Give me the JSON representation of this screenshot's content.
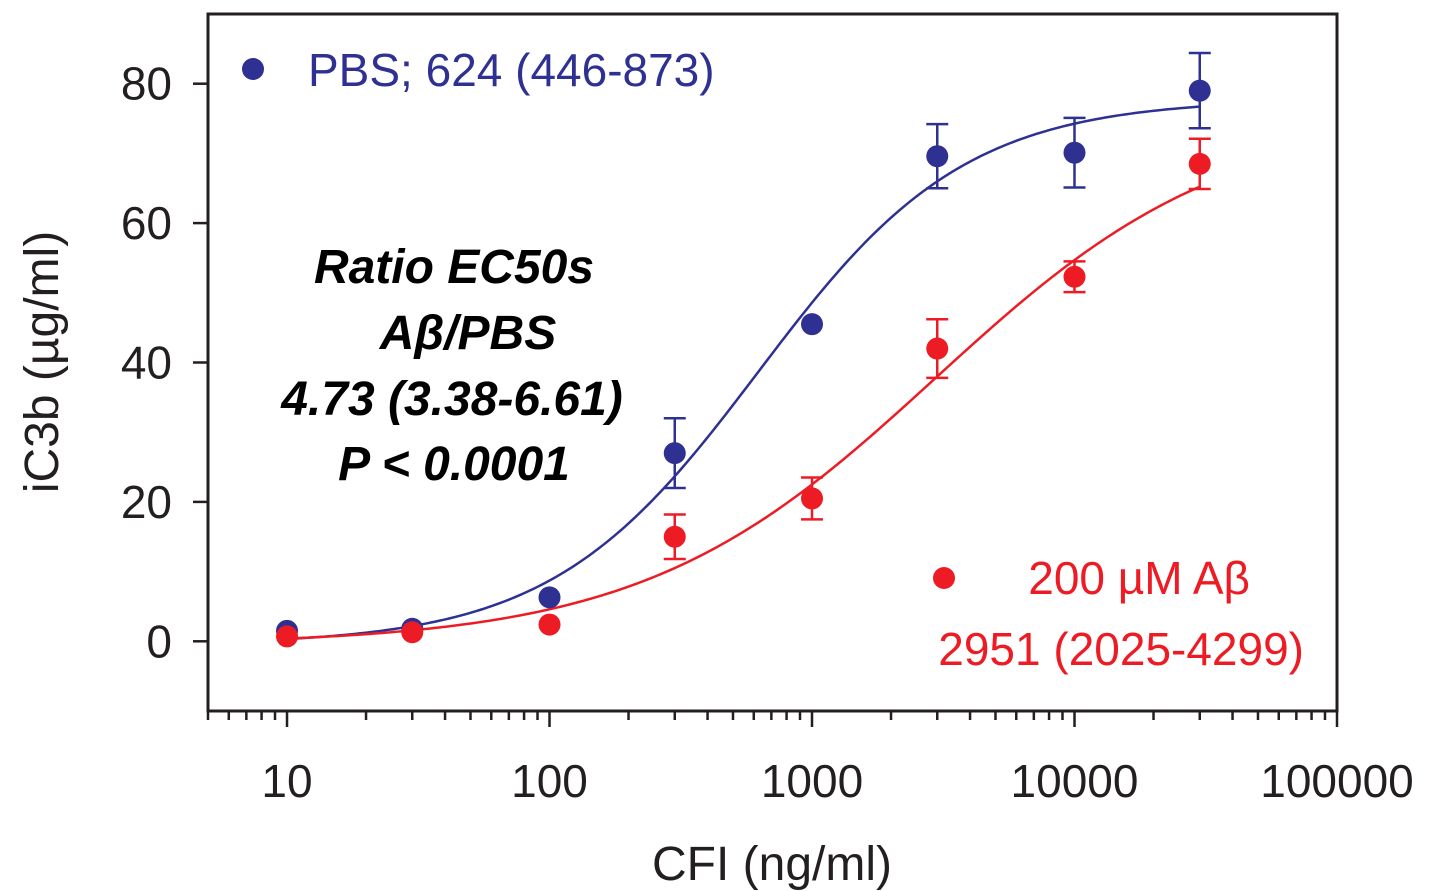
{
  "chart_data": {
    "type": "scatter",
    "x_scale": "log",
    "xlim": [
      5,
      100000
    ],
    "ylim": [
      -10,
      90
    ],
    "xlabel": "CFI (ng/ml)",
    "ylabel": "iC3b (µg/ml)",
    "x_ticks": [
      10,
      100,
      1000,
      10000,
      100000
    ],
    "x_tick_labels": [
      "10",
      "100",
      "1000",
      "10000",
      "100000"
    ],
    "y_ticks": [
      0,
      20,
      40,
      60,
      80
    ],
    "y_tick_labels": [
      "0",
      "20",
      "40",
      "60",
      "80"
    ],
    "grid": false,
    "legend_placement": "in-plot",
    "series": [
      {
        "name": "PBS; 624 (446-873)",
        "color": "#2e3192",
        "x": [
          10,
          30,
          100,
          300,
          1000,
          3000,
          10000,
          30000
        ],
        "y": [
          1.5,
          1.8,
          6.3,
          27.0,
          45.5,
          69.6,
          70.1,
          79.0
        ],
        "err": [
          0,
          0,
          0,
          5.0,
          0,
          4.6,
          5.0,
          5.4
        ],
        "fit": {
          "bottom": -0.5,
          "top": 77.8,
          "ec50": 624,
          "hill": 1.1
        }
      },
      {
        "name": "200 µM Aβ",
        "label_line2": "2951 (2025-4299)",
        "color": "#ed1c24",
        "x": [
          10,
          30,
          100,
          300,
          1000,
          3000,
          10000,
          30000
        ],
        "y": [
          0.7,
          1.3,
          2.4,
          15.0,
          20.5,
          42.0,
          52.3,
          68.5
        ],
        "err": [
          0,
          0,
          0,
          3.2,
          3.0,
          4.2,
          2.2,
          3.6
        ],
        "fit": {
          "bottom": -0.5,
          "top": 76.0,
          "ec50": 2951,
          "hill": 0.78
        }
      }
    ],
    "annotation": [
      "Ratio EC50s",
      "Aβ/PBS",
      "4.73 (3.38-6.61)",
      "P < 0.0001"
    ]
  }
}
